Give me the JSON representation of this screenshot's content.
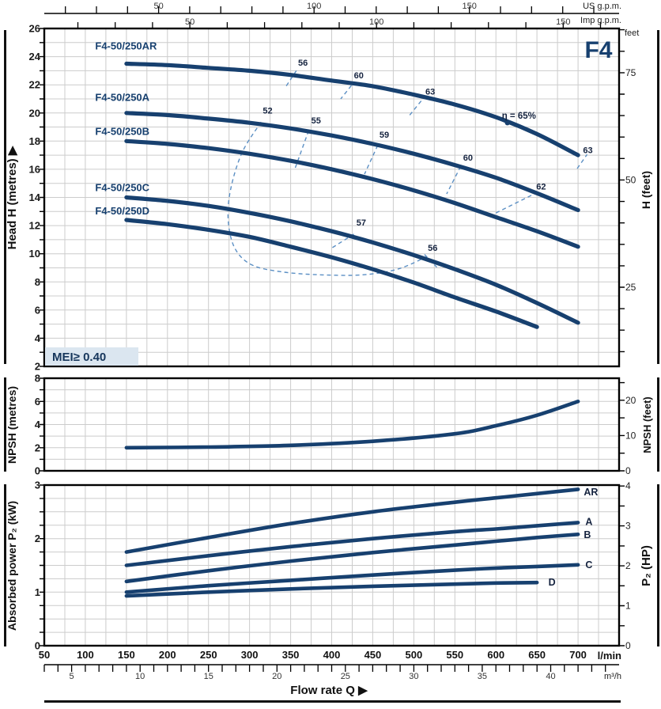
{
  "page": {
    "model": "F4",
    "mei": "MEI≥ 0.40",
    "flow_rate_label": "Flow rate Q ▶"
  },
  "units": {
    "us_gpm": "US g.p.m.",
    "imp_gpm": "Imp g.p.m.",
    "feet": "feet",
    "l_min": "l/min",
    "m3_h": "m³/h"
  },
  "axis_titles": {
    "head_left": "Head H (metres) ▶",
    "head_right": "H (feet)",
    "npsh_left": "NPSH (metres)",
    "npsh_right": "NPSH (feet)",
    "power_left": "Absorbed power P₂ (kW)",
    "power_right": "P₂ (HP)"
  },
  "flow_axis": {
    "x_unit": "l/min",
    "x_range_lmin": [
      50,
      750
    ],
    "grid_step_lmin": 25,
    "lmin_labels": {
      "start": 50,
      "end": 700,
      "step": 50
    },
    "us_gpm": {
      "lpm_per_unit": 3.785,
      "tick_step": 10,
      "labels": [
        50,
        100,
        150
      ]
    },
    "imp_gpm": {
      "lpm_per_unit": 4.546,
      "tick_step": 10,
      "labels": [
        50,
        100,
        150
      ]
    },
    "m3h": {
      "lpm_per_unit": 16.667,
      "tick_step": 1,
      "labels": [
        5,
        10,
        15,
        20,
        25,
        30,
        35,
        40
      ]
    }
  },
  "chart_data": [
    {
      "type": "line",
      "name": "head_vs_flow",
      "ylabel": "Head H (metres)",
      "xlabel": "Flow rate Q (l/min)",
      "y_range": [
        2,
        26
      ],
      "y_tick_step": 1,
      "y_label_step": 2,
      "right_axis": {
        "unit": "feet",
        "m_per_unit": 0.3048,
        "tick_step": 5,
        "tick_min": 10,
        "tick_max": 85,
        "labels": [
          25,
          50,
          75
        ]
      },
      "series": [
        {
          "name": "F4-50/250AR",
          "label_q": 112,
          "label_v": 24.5,
          "points": [
            [
              150,
              23.5
            ],
            [
              200,
              23.4
            ],
            [
              250,
              23.2
            ],
            [
              300,
              23.0
            ],
            [
              350,
              22.7
            ],
            [
              400,
              22.3
            ],
            [
              450,
              21.9
            ],
            [
              500,
              21.3
            ],
            [
              550,
              20.6
            ],
            [
              600,
              19.7
            ],
            [
              650,
              18.5
            ],
            [
              700,
              17.0
            ]
          ]
        },
        {
          "name": "F4-50/250A",
          "label_q": 112,
          "label_v": 20.85,
          "points": [
            [
              150,
              20.0
            ],
            [
              200,
              19.85
            ],
            [
              250,
              19.6
            ],
            [
              300,
              19.3
            ],
            [
              350,
              18.9
            ],
            [
              400,
              18.4
            ],
            [
              450,
              17.8
            ],
            [
              500,
              17.1
            ],
            [
              550,
              16.3
            ],
            [
              600,
              15.4
            ],
            [
              650,
              14.3
            ],
            [
              700,
              13.1
            ]
          ]
        },
        {
          "name": "F4-50/250B",
          "label_q": 112,
          "label_v": 18.45,
          "points": [
            [
              150,
              18.0
            ],
            [
              200,
              17.8
            ],
            [
              250,
              17.5
            ],
            [
              300,
              17.1
            ],
            [
              350,
              16.6
            ],
            [
              400,
              16.0
            ],
            [
              450,
              15.3
            ],
            [
              500,
              14.5
            ],
            [
              550,
              13.6
            ],
            [
              600,
              12.6
            ],
            [
              650,
              11.6
            ],
            [
              700,
              10.5
            ]
          ]
        },
        {
          "name": "F4-50/250C",
          "label_q": 112,
          "label_v": 14.45,
          "points": [
            [
              150,
              14.0
            ],
            [
              200,
              13.75
            ],
            [
              250,
              13.4
            ],
            [
              300,
              12.9
            ],
            [
              350,
              12.3
            ],
            [
              400,
              11.6
            ],
            [
              450,
              10.8
            ],
            [
              500,
              9.9
            ],
            [
              550,
              8.9
            ],
            [
              600,
              7.8
            ],
            [
              650,
              6.5
            ],
            [
              700,
              5.1
            ]
          ]
        },
        {
          "name": "F4-50/250D",
          "label_q": 112,
          "label_v": 12.8,
          "points": [
            [
              150,
              12.4
            ],
            [
              200,
              12.1
            ],
            [
              250,
              11.7
            ],
            [
              300,
              11.2
            ],
            [
              350,
              10.5
            ],
            [
              400,
              9.75
            ],
            [
              450,
              8.9
            ],
            [
              500,
              7.95
            ],
            [
              550,
              6.9
            ],
            [
              600,
              5.9
            ],
            [
              650,
              4.8
            ]
          ]
        }
      ],
      "efficiency": {
        "eta_label": {
          "text": "η = 65%",
          "q": 628,
          "v": 19.6
        },
        "marker": {
          "q": 614,
          "v": 19.3
        },
        "labels": [
          {
            "text": "56",
            "q": 365,
            "v": 23.35
          },
          {
            "text": "60",
            "q": 433,
            "v": 22.45
          },
          {
            "text": "63",
            "q": 520,
            "v": 21.3
          },
          {
            "text": "63",
            "q": 712,
            "v": 17.15
          },
          {
            "text": "52",
            "q": 322,
            "v": 19.95
          },
          {
            "text": "55",
            "q": 381,
            "v": 19.25
          },
          {
            "text": "59",
            "q": 464,
            "v": 18.25
          },
          {
            "text": "60",
            "q": 566,
            "v": 16.6
          },
          {
            "text": "62",
            "q": 655,
            "v": 14.55
          },
          {
            "text": "57",
            "q": 436,
            "v": 12.0
          },
          {
            "text": "56",
            "q": 523,
            "v": 10.2
          }
        ],
        "segments": [
          [
            [
              357,
              23.0
            ],
            [
              344,
              21.85
            ]
          ],
          [
            [
              424,
              21.95
            ],
            [
              411,
              21.0
            ]
          ],
          [
            [
              509,
              20.85
            ],
            [
              495,
              19.85
            ]
          ],
          [
            [
              699,
              16.05
            ],
            [
              711,
              17.05
            ]
          ],
          [
            [
              372,
              18.75
            ],
            [
              355,
              16.0
            ]
          ],
          [
            [
              456,
              17.7
            ],
            [
              440,
              15.65
            ]
          ],
          [
            [
              557,
              16.2
            ],
            [
              540,
              14.25
            ]
          ],
          [
            [
              600,
              12.9
            ],
            [
              650,
              14.35
            ]
          ],
          [
            [
              427,
              11.4
            ],
            [
              400,
              10.4
            ]
          ],
          [
            [
              513,
              9.95
            ],
            [
              528,
              9.05
            ]
          ]
        ],
        "loop": [
          [
            314,
            19.35
          ],
          [
            291,
            17.2
          ],
          [
            277,
            14.6
          ],
          [
            274,
            12.4
          ],
          [
            282,
            10.4
          ],
          [
            303,
            9.2
          ],
          [
            341,
            8.7
          ],
          [
            389,
            8.5
          ],
          [
            437,
            8.5
          ],
          [
            480,
            8.9
          ],
          [
            516,
            9.8
          ]
        ]
      }
    },
    {
      "type": "line",
      "name": "npsh_vs_flow",
      "ylabel": "NPSH (metres)",
      "xlabel": "Flow rate Q (l/min)",
      "y_range": [
        0,
        8
      ],
      "y_tick_step": 1,
      "y_label_step": 2,
      "right_axis": {
        "unit": "feet",
        "m_per_unit": 0.3048,
        "tick_step": 5,
        "tick_min": 0,
        "tick_max": 25,
        "labels": [
          0,
          10,
          20
        ]
      },
      "series": [
        {
          "name": "NPSH",
          "points": [
            [
              150,
              2.0
            ],
            [
              250,
              2.05
            ],
            [
              350,
              2.2
            ],
            [
              450,
              2.55
            ],
            [
              550,
              3.2
            ],
            [
              600,
              3.9
            ],
            [
              650,
              4.8
            ],
            [
              700,
              6.0
            ]
          ]
        }
      ]
    },
    {
      "type": "line",
      "name": "power_vs_flow",
      "ylabel": "Absorbed power P₂ (kW)",
      "xlabel": "Flow rate Q (l/min)",
      "y_range": [
        0,
        3
      ],
      "y_tick_step": 0.25,
      "y_label_step": 1,
      "right_axis": {
        "unit": "HP",
        "kw_per_unit": 0.7457,
        "tick_step": 0.5,
        "tick_min": 0,
        "tick_max": 4,
        "labels": [
          0,
          1,
          2,
          3,
          4
        ]
      },
      "series": [
        {
          "name": "AR",
          "end_label": "AR",
          "label_q": 707,
          "label_v": 2.87,
          "points": [
            [
              150,
              1.75
            ],
            [
              250,
              2.02
            ],
            [
              350,
              2.28
            ],
            [
              450,
              2.5
            ],
            [
              550,
              2.68
            ],
            [
              600,
              2.76
            ],
            [
              650,
              2.84
            ],
            [
              700,
              2.92
            ]
          ]
        },
        {
          "name": "A",
          "end_label": "A",
          "label_q": 709,
          "label_v": 2.31,
          "points": [
            [
              150,
              1.5
            ],
            [
              250,
              1.68
            ],
            [
              350,
              1.85
            ],
            [
              450,
              2.0
            ],
            [
              550,
              2.13
            ],
            [
              600,
              2.18
            ],
            [
              650,
              2.24
            ],
            [
              700,
              2.3
            ]
          ]
        },
        {
          "name": "B",
          "end_label": "B",
          "label_q": 707,
          "label_v": 2.07,
          "points": [
            [
              150,
              1.2
            ],
            [
              250,
              1.4
            ],
            [
              350,
              1.58
            ],
            [
              450,
              1.74
            ],
            [
              550,
              1.88
            ],
            [
              600,
              1.95
            ],
            [
              650,
              2.02
            ],
            [
              700,
              2.08
            ]
          ]
        },
        {
          "name": "C",
          "end_label": "C",
          "label_q": 709,
          "label_v": 1.51,
          "points": [
            [
              150,
              1.0
            ],
            [
              250,
              1.12
            ],
            [
              350,
              1.22
            ],
            [
              450,
              1.32
            ],
            [
              550,
              1.41
            ],
            [
              600,
              1.45
            ],
            [
              650,
              1.48
            ],
            [
              700,
              1.51
            ]
          ]
        },
        {
          "name": "D",
          "end_label": "D",
          "label_q": 664,
          "label_v": 1.18,
          "points": [
            [
              150,
              0.93
            ],
            [
              250,
              1.0
            ],
            [
              350,
              1.06
            ],
            [
              450,
              1.11
            ],
            [
              550,
              1.15
            ],
            [
              600,
              1.17
            ],
            [
              650,
              1.18
            ]
          ]
        }
      ]
    }
  ],
  "colors": {
    "curve": "#17406f",
    "accent_text": "#17406f",
    "eff_dash": "#5b8fc4",
    "grid": "#cccccc",
    "axis": "#111111",
    "mei_bg": "#dbe6f0"
  }
}
